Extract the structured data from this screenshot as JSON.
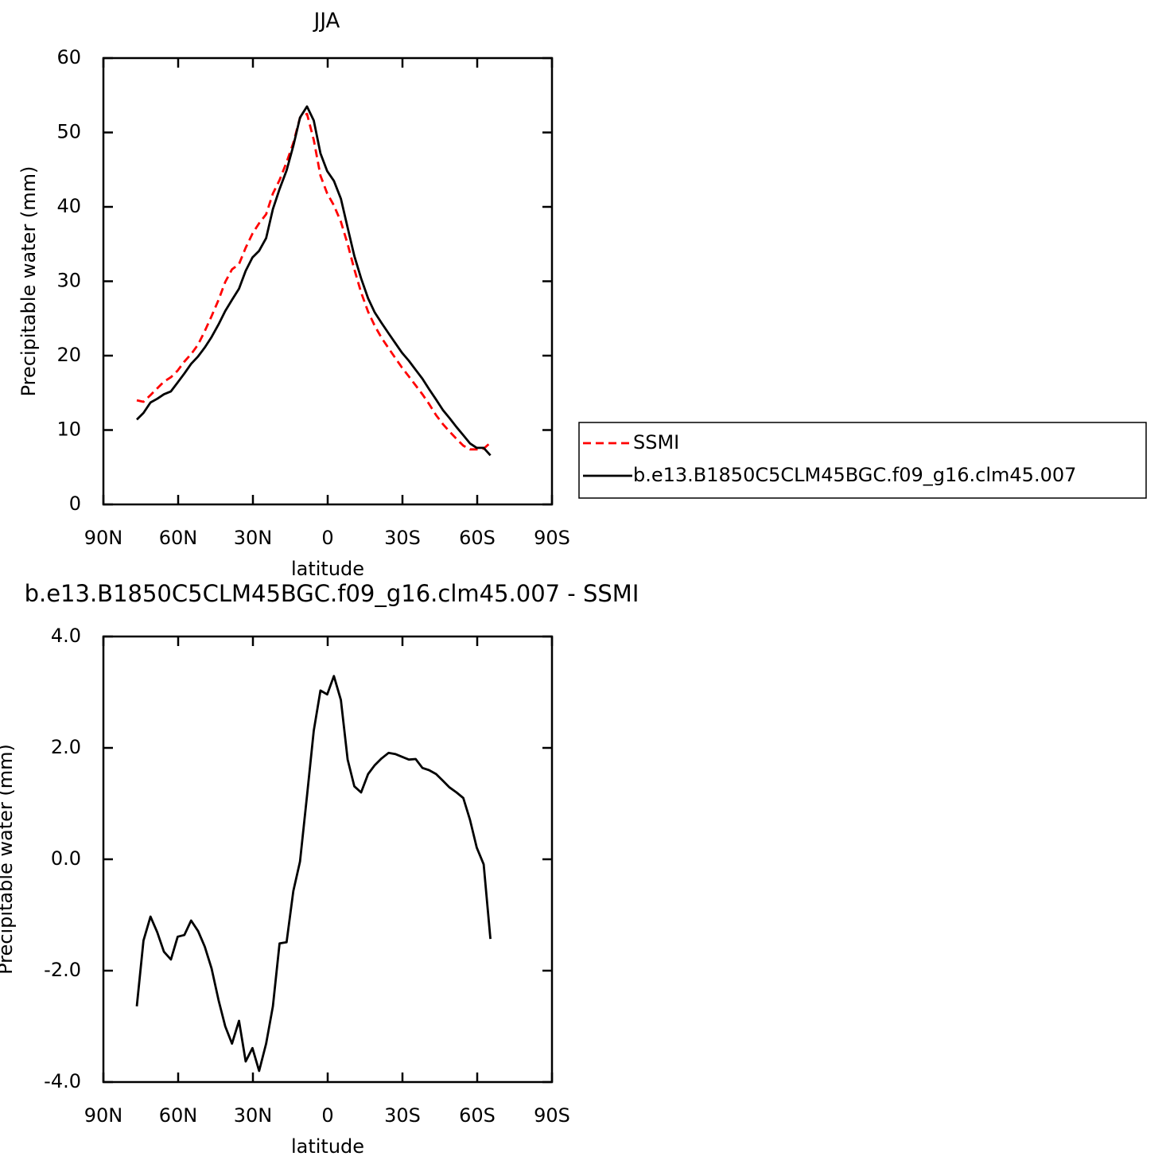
{
  "chart_data": [
    {
      "type": "line",
      "title": "JJA",
      "x_label": "latitude",
      "y_label": "Precipitable water (mm)",
      "x": [
        76.6,
        73.9,
        71.1,
        68.4,
        65.7,
        62.9,
        60.2,
        57.5,
        54.8,
        52.0,
        49.3,
        46.6,
        43.8,
        41.1,
        38.4,
        35.6,
        32.9,
        30.2,
        27.5,
        24.7,
        22.0,
        19.3,
        16.5,
        13.8,
        11.1,
        8.3,
        5.6,
        2.9,
        0.2,
        -2.5,
        -5.3,
        -8.0,
        -10.7,
        -13.4,
        -16.2,
        -18.9,
        -21.6,
        -24.4,
        -27.1,
        -29.8,
        -32.6,
        -35.3,
        -38.0,
        -40.7,
        -43.5,
        -46.2,
        -48.9,
        -51.7,
        -54.4,
        -57.1,
        -59.8,
        -62.6,
        -65.3
      ],
      "xlim": [
        90,
        -90
      ],
      "xticks": [
        {
          "value": 90,
          "label": "90N"
        },
        {
          "value": 60,
          "label": "60N"
        },
        {
          "value": 30,
          "label": "30N"
        },
        0,
        {
          "value": -30,
          "label": "30S"
        },
        {
          "value": -60,
          "label": "60S"
        },
        {
          "value": -90,
          "label": "90S"
        }
      ],
      "ylim": [
        0,
        60
      ],
      "yticks": [
        0,
        10,
        20,
        30,
        40,
        50,
        60
      ],
      "legend": "right",
      "series": [
        {
          "name": "SSMI",
          "color": "#ff0000",
          "line_style": "dashed",
          "values": [
            14.0,
            13.8,
            14.7,
            15.6,
            16.5,
            17.1,
            18.0,
            19.2,
            20.2,
            21.5,
            23.3,
            25.3,
            27.5,
            29.9,
            31.6,
            32.3,
            34.5,
            36.4,
            37.8,
            39.0,
            41.8,
            43.6,
            46.0,
            48.6,
            52.0,
            52.5,
            49.0,
            44.2,
            41.8,
            40.2,
            38.0,
            35.0,
            31.6,
            28.5,
            25.9,
            24.0,
            22.4,
            21.0,
            19.7,
            18.4,
            17.2,
            16.0,
            14.8,
            13.5,
            12.0,
            10.8,
            9.8,
            8.8,
            7.9,
            7.4,
            7.4,
            7.5,
            8.3
          ]
        },
        {
          "name": "b.e13.B1850C5CLM45BGC.f09_g16.clm45.007",
          "color": "#000000",
          "line_style": "solid",
          "values": [
            11.4,
            12.3,
            13.7,
            14.2,
            14.8,
            15.2,
            16.4,
            17.6,
            18.9,
            19.9,
            21.1,
            22.5,
            24.2,
            26.0,
            27.5,
            29.0,
            31.4,
            33.2,
            34.1,
            35.8,
            39.7,
            42.4,
            44.9,
            48.2,
            52.0,
            53.5,
            51.6,
            47.2,
            44.8,
            43.5,
            41.1,
            37.2,
            33.4,
            30.4,
            27.7,
            25.8,
            24.4,
            23.0,
            21.7,
            20.4,
            19.3,
            18.1,
            16.9,
            15.5,
            14.1,
            12.7,
            11.6,
            10.4,
            9.3,
            8.2,
            7.6,
            7.6,
            6.6
          ]
        }
      ]
    },
    {
      "type": "line",
      "title": "b.e13.B1850C5CLM45BGC.f09_g16.clm45.007 - SSMI",
      "x_label": "latitude",
      "y_label": "Precipitable water (mm)",
      "x": [
        76.6,
        73.9,
        71.1,
        68.4,
        65.7,
        62.9,
        60.2,
        57.5,
        54.8,
        52.0,
        49.3,
        46.6,
        43.8,
        41.1,
        38.4,
        35.6,
        32.9,
        30.2,
        27.5,
        24.7,
        22.0,
        19.3,
        16.5,
        13.8,
        11.1,
        8.3,
        5.6,
        2.9,
        0.2,
        -2.5,
        -5.3,
        -8.0,
        -10.7,
        -13.4,
        -16.2,
        -18.9,
        -21.6,
        -24.4,
        -27.1,
        -29.8,
        -32.6,
        -35.3,
        -38.0,
        -40.7,
        -43.5,
        -46.2,
        -48.9,
        -51.7,
        -54.4,
        -57.1,
        -59.8,
        -62.6,
        -65.3
      ],
      "xlim": [
        90,
        -90
      ],
      "xticks": [
        {
          "value": 90,
          "label": "90N"
        },
        {
          "value": 60,
          "label": "60N"
        },
        {
          "value": 30,
          "label": "30N"
        },
        0,
        {
          "value": -30,
          "label": "30S"
        },
        {
          "value": -60,
          "label": "60S"
        },
        {
          "value": -90,
          "label": "90S"
        }
      ],
      "ylim": [
        -4,
        4
      ],
      "yticks": [
        {
          "value": -4,
          "label": "-4.0"
        },
        {
          "value": -2,
          "label": "-2.0"
        },
        {
          "value": 0,
          "label": "0.0"
        },
        {
          "value": 2,
          "label": "2.0"
        },
        {
          "value": 4,
          "label": "4.0"
        }
      ],
      "color": "#000000",
      "values": [
        -2.64,
        -1.46,
        -1.03,
        -1.31,
        -1.66,
        -1.8,
        -1.39,
        -1.36,
        -1.1,
        -1.29,
        -1.57,
        -1.96,
        -2.53,
        -3.0,
        -3.31,
        -2.9,
        -3.63,
        -3.39,
        -3.8,
        -3.31,
        -2.64,
        -1.51,
        -1.49,
        -0.57,
        -0.04,
        1.14,
        2.31,
        3.03,
        2.96,
        3.29,
        2.86,
        1.79,
        1.31,
        1.2,
        1.53,
        1.69,
        1.81,
        1.91,
        1.89,
        1.84,
        1.79,
        1.8,
        1.64,
        1.6,
        1.53,
        1.41,
        1.29,
        1.2,
        1.1,
        0.71,
        0.21,
        -0.09,
        -1.43
      ]
    }
  ]
}
